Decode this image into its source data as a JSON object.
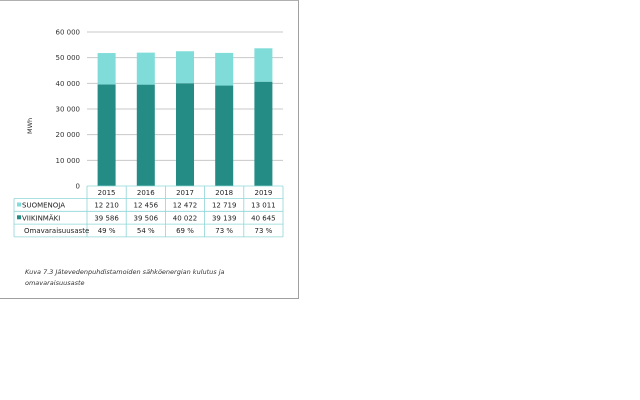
{
  "chart_data": {
    "type": "bar",
    "stacked": true,
    "categories": [
      "2015",
      "2016",
      "2017",
      "2018",
      "2019"
    ],
    "series": [
      {
        "name": "VIIKINMÄKI",
        "values": [
          39586,
          39506,
          40022,
          39139,
          40645
        ],
        "color": "#258c85"
      },
      {
        "name": "SUOMENOJA",
        "values": [
          12210,
          12456,
          12472,
          12719,
          13011
        ],
        "color": "#7fdcd8"
      }
    ],
    "table_rows": [
      {
        "label": "SUOMENOJA",
        "values": [
          "12 210",
          "12 456",
          "12 472",
          "12 719",
          "13 011"
        ],
        "color": "#7fdcd8"
      },
      {
        "label": "VIIKINMÄKI",
        "values": [
          "39 586",
          "39 506",
          "40 022",
          "39 139",
          "40 645"
        ],
        "color": "#258c85"
      },
      {
        "label": "Omavaraisuusaste",
        "values": [
          "49 %",
          "54 %",
          "69 %",
          "73 %",
          "73 %"
        ]
      }
    ],
    "ylabel": "MWh",
    "ylim": [
      0,
      60000
    ],
    "yticks": [
      0,
      10000,
      20000,
      30000,
      40000,
      50000,
      60000
    ],
    "ytick_labels": [
      "0",
      "10 000",
      "20 000",
      "30 000",
      "40 000",
      "50 000",
      "60 000"
    ],
    "grid": true,
    "table_border_color": "#8fd6d6"
  },
  "caption": "Kuva 7.3  Jätevedenpuhdistamoiden sähköenergian kulutus ja omavaraisuusaste"
}
